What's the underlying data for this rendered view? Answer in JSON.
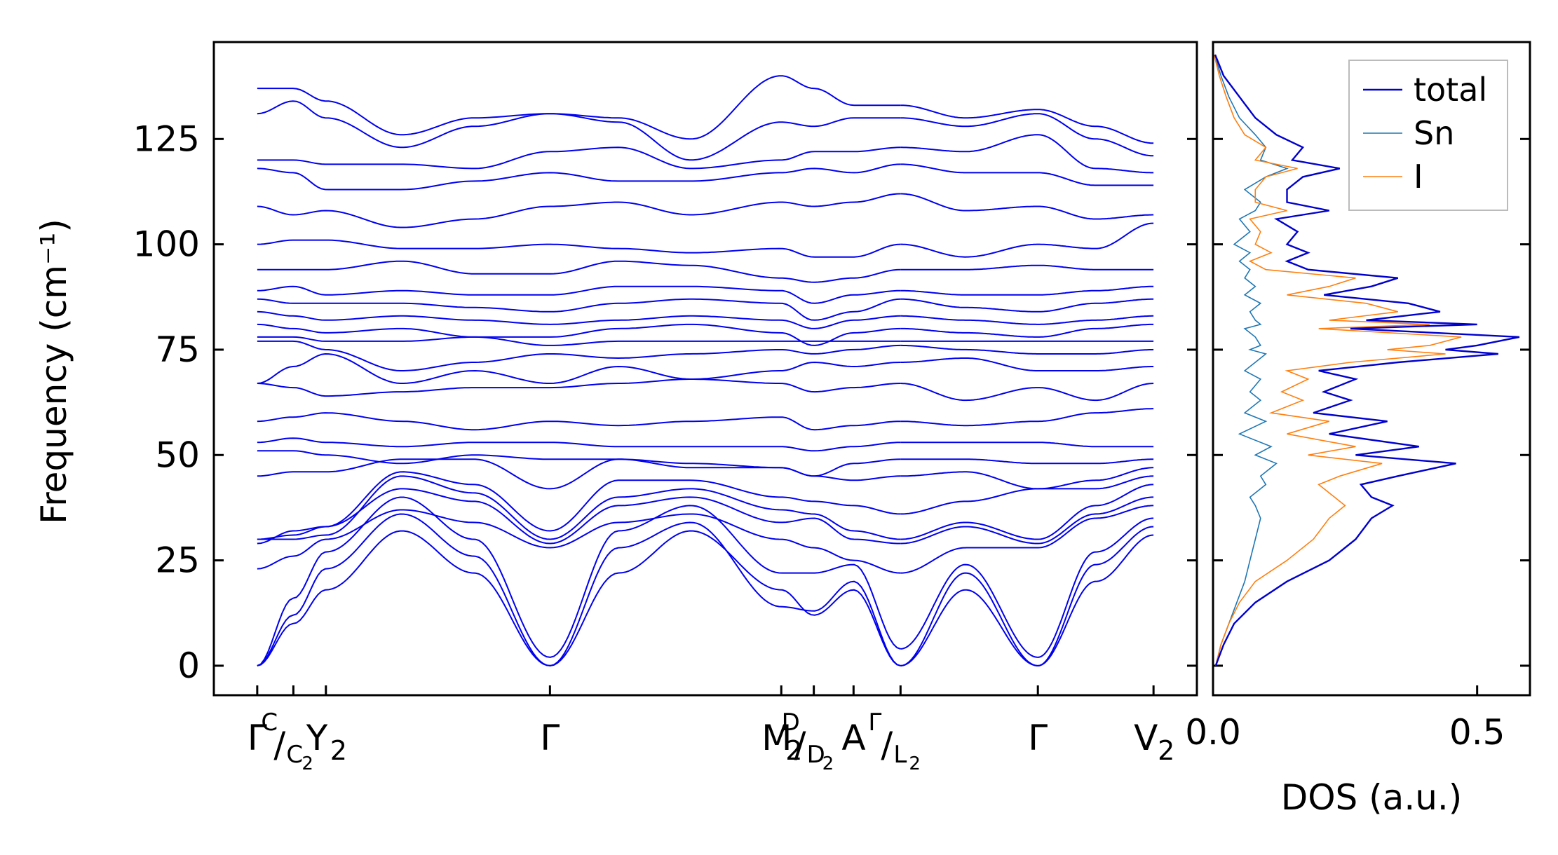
{
  "chart_data": [
    {
      "type": "line",
      "ylabel": "Frequency (cm⁻¹)",
      "ylim": [
        -7,
        148
      ],
      "yticks": [
        "0",
        "25",
        "50",
        "75",
        "100",
        "125"
      ],
      "x_path_labels": [
        {
          "text": "Γ",
          "x": 0.0
        },
        {
          "text": "C",
          "x": 0.05,
          "superscript": true
        },
        {
          "text": "/",
          "x": 0.05
        },
        {
          "text": "C",
          "x": 0.05,
          "subscript": "2"
        },
        {
          "text": "Y",
          "x": 0.095,
          "subscript": "2"
        },
        {
          "text": "Γ",
          "x": 0.405
        },
        {
          "text": "M",
          "x": 0.725,
          "subscript": "2"
        },
        {
          "text": "D",
          "x": 0.77,
          "superscript": true
        },
        {
          "text": "/",
          "x": 0.77
        },
        {
          "text": "D",
          "x": 0.77,
          "subscript": "2"
        },
        {
          "text": "A",
          "x": 0.825
        },
        {
          "text": "Γ",
          "x": 0.89,
          "superscript": true
        },
        {
          "text": "/",
          "x": 0.89
        },
        {
          "text": "L",
          "x": 0.89,
          "subscript": "2"
        },
        {
          "text": "Γ",
          "x": 1.08
        },
        {
          "text": "V",
          "x": 1.24,
          "subscript": "2"
        }
      ],
      "band_color": "#0000ee",
      "segments": [
        {
          "name": "segment-1",
          "x_range": [
            0.0,
            0.89
          ],
          "x_knots": [
            0.0,
            0.05,
            0.095,
            0.2,
            0.3,
            0.405,
            0.5,
            0.6,
            0.725,
            0.77,
            0.825,
            0.89
          ],
          "bands": [
            [
              0,
              10,
              18,
              32,
              22,
              0,
              22,
              32,
              18,
              12,
              18,
              0
            ],
            [
              0,
              12,
              23,
              36,
              26,
              0,
              28,
              34,
              14,
              13,
              20,
              0
            ],
            [
              0,
              16,
              27,
              40,
              30,
              2,
              32,
              38,
              22,
              22,
              24,
              4
            ],
            [
              23,
              26,
              30,
              37,
              34,
              28,
              34,
              36,
              30,
              28,
              25,
              22
            ],
            [
              29,
              32,
              33,
              42,
              39,
              29,
              38,
              40,
              34,
              35,
              30,
              29
            ],
            [
              30,
              30,
              31,
              45,
              41,
              30,
              40,
              42,
              37,
              36,
              32,
              30
            ],
            [
              30,
              31,
              33,
              46,
              43,
              32,
              44,
              44,
              40,
              39,
              38,
              36
            ],
            [
              45,
              46,
              46,
              49,
              49,
              42,
              49,
              47,
              47,
              45,
              44,
              45
            ],
            [
              51,
              51,
              50,
              48,
              50,
              49,
              49,
              48,
              47,
              45,
              48,
              49
            ],
            [
              53,
              54,
              53,
              52,
              53,
              53,
              52,
              52,
              52,
              51,
              52,
              53
            ],
            [
              58,
              59,
              60,
              58,
              56,
              58,
              57,
              58,
              59,
              56,
              57,
              58
            ],
            [
              67,
              66,
              64,
              65,
              66,
              66,
              67,
              68,
              67,
              65,
              66,
              67
            ],
            [
              67,
              71,
              74,
              67,
              70,
              67,
              71,
              68,
              70,
              72,
              71,
              72
            ],
            [
              77,
              77,
              75,
              70,
              72,
              74,
              73,
              74,
              75,
              74,
              75,
              76
            ],
            [
              78,
              78,
              77,
              77,
              78,
              76,
              77,
              77,
              77,
              77,
              77,
              77
            ],
            [
              81,
              80,
              79,
              80,
              78,
              78,
              80,
              81,
              79,
              76,
              79,
              80
            ],
            [
              84,
              83,
              82,
              83,
              82,
              81,
              82,
              83,
              82,
              80,
              82,
              83
            ],
            [
              87,
              86,
              86,
              86,
              85,
              84,
              86,
              87,
              86,
              82,
              84,
              87
            ],
            [
              89,
              90,
              88,
              89,
              88,
              88,
              90,
              90,
              89,
              86,
              88,
              89
            ],
            [
              94,
              94,
              94,
              96,
              93,
              93,
              96,
              95,
              92,
              91,
              92,
              94
            ],
            [
              100,
              101,
              101,
              99,
              99,
              100,
              99,
              98,
              99,
              97,
              97,
              100
            ],
            [
              109,
              107,
              108,
              104,
              106,
              109,
              110,
              107,
              110,
              109,
              110,
              112
            ],
            [
              118,
              117,
              113,
              113,
              115,
              117,
              115,
              115,
              117,
              118,
              117,
              119
            ],
            [
              120,
              120,
              119,
              119,
              118,
              122,
              123,
              118,
              120,
              122,
              122,
              123
            ],
            [
              131,
              134,
              130,
              123,
              128,
              131,
              129,
              120,
              129,
              128,
              130,
              130
            ],
            [
              137,
              137,
              134,
              126,
              130,
              131,
              130,
              125,
              140,
              137,
              133,
              133
            ]
          ]
        },
        {
          "name": "segment-2",
          "x_range": [
            0.89,
            1.24
          ],
          "x_knots": [
            0.89,
            0.98,
            1.08,
            1.16,
            1.24
          ],
          "bands": [
            [
              0,
              18,
              0,
              20,
              31
            ],
            [
              0,
              22,
              0,
              24,
              33
            ],
            [
              4,
              24,
              2,
              27,
              35
            ],
            [
              22,
              28,
              28,
              35,
              38
            ],
            [
              29,
              33,
              29,
              36,
              40
            ],
            [
              30,
              34,
              30,
              38,
              43
            ],
            [
              36,
              39,
              42,
              42,
              45
            ],
            [
              45,
              46,
              42,
              44,
              47
            ],
            [
              49,
              49,
              48,
              48,
              49
            ],
            [
              53,
              53,
              53,
              52,
              52
            ],
            [
              58,
              57,
              58,
              60,
              61
            ],
            [
              67,
              63,
              66,
              63,
              67
            ],
            [
              72,
              73,
              70,
              70,
              71
            ],
            [
              76,
              75,
              74,
              74,
              75
            ],
            [
              77,
              77,
              77,
              77,
              77
            ],
            [
              80,
              79,
              78,
              80,
              81
            ],
            [
              83,
              82,
              81,
              82,
              83
            ],
            [
              87,
              85,
              84,
              86,
              87
            ],
            [
              89,
              88,
              88,
              89,
              90
            ],
            [
              94,
              94,
              95,
              94,
              94
            ],
            [
              100,
              97,
              100,
              99,
              105
            ],
            [
              112,
              108,
              109,
              106,
              107
            ],
            [
              119,
              117,
              117,
              114,
              114
            ],
            [
              123,
              122,
              126,
              118,
              117
            ],
            [
              130,
              128,
              131,
              125,
              121
            ],
            [
              133,
              130,
              132,
              128,
              124
            ]
          ]
        }
      ]
    },
    {
      "type": "line",
      "xlabel": "DOS (a.u.)",
      "xlim": [
        0.0,
        0.6
      ],
      "ylim": [
        -7,
        148
      ],
      "xticks": [
        {
          "value": 0.0,
          "label": "0.0"
        },
        {
          "value": 0.5,
          "label": "0.5"
        }
      ],
      "legend_placement": "top-right",
      "y_grid": [
        0,
        5,
        10,
        15,
        20,
        25,
        30,
        35,
        38,
        40,
        43,
        45,
        48,
        50,
        52,
        55,
        58,
        60,
        63,
        65,
        68,
        70,
        72,
        74,
        75,
        76,
        78,
        80,
        81,
        82,
        84,
        86,
        88,
        90,
        92,
        94,
        96,
        98,
        100,
        103,
        106,
        108,
        110,
        113,
        116,
        118,
        120,
        123,
        126,
        130,
        135,
        140,
        145
      ],
      "series": [
        {
          "name": "total",
          "color": "#0000cc",
          "values": [
            0.005,
            0.02,
            0.04,
            0.08,
            0.14,
            0.22,
            0.27,
            0.3,
            0.34,
            0.3,
            0.28,
            0.35,
            0.46,
            0.27,
            0.39,
            0.22,
            0.33,
            0.19,
            0.26,
            0.21,
            0.27,
            0.2,
            0.35,
            0.54,
            0.44,
            0.5,
            0.58,
            0.26,
            0.5,
            0.29,
            0.43,
            0.37,
            0.21,
            0.3,
            0.35,
            0.18,
            0.14,
            0.18,
            0.14,
            0.16,
            0.12,
            0.22,
            0.14,
            0.14,
            0.17,
            0.24,
            0.15,
            0.17,
            0.12,
            0.08,
            0.05,
            0.02,
            0.004
          ]
        },
        {
          "name": "Sn",
          "color": "#1f77b4",
          "values": [
            0.005,
            0.015,
            0.03,
            0.045,
            0.06,
            0.07,
            0.08,
            0.09,
            0.08,
            0.07,
            0.1,
            0.09,
            0.12,
            0.08,
            0.11,
            0.05,
            0.1,
            0.06,
            0.09,
            0.07,
            0.09,
            0.06,
            0.08,
            0.1,
            0.07,
            0.09,
            0.08,
            0.06,
            0.09,
            0.08,
            0.07,
            0.09,
            0.06,
            0.08,
            0.06,
            0.07,
            0.05,
            0.07,
            0.04,
            0.07,
            0.05,
            0.08,
            0.09,
            0.06,
            0.1,
            0.14,
            0.09,
            0.1,
            0.08,
            0.05,
            0.03,
            0.015,
            0.003
          ]
        },
        {
          "name": "I",
          "color": "#ff7f0e",
          "values": [
            0.005,
            0.015,
            0.03,
            0.05,
            0.08,
            0.14,
            0.19,
            0.22,
            0.25,
            0.23,
            0.2,
            0.24,
            0.32,
            0.18,
            0.27,
            0.14,
            0.22,
            0.11,
            0.17,
            0.13,
            0.18,
            0.14,
            0.26,
            0.44,
            0.33,
            0.41,
            0.47,
            0.2,
            0.41,
            0.22,
            0.35,
            0.29,
            0.14,
            0.22,
            0.27,
            0.1,
            0.07,
            0.11,
            0.08,
            0.09,
            0.07,
            0.14,
            0.08,
            0.08,
            0.1,
            0.16,
            0.08,
            0.1,
            0.06,
            0.04,
            0.025,
            0.012,
            0.002
          ]
        }
      ]
    }
  ]
}
